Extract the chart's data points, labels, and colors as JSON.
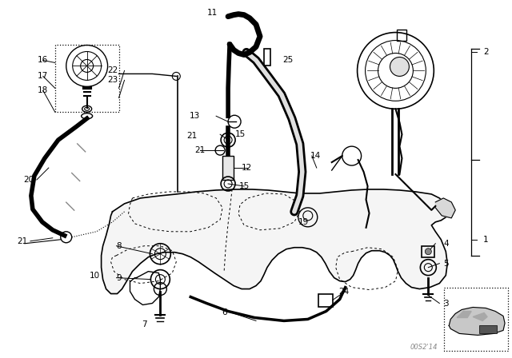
{
  "bg_color": "#ffffff",
  "line_color": "#000000",
  "fig_width": 6.4,
  "fig_height": 4.48,
  "dpi": 100,
  "watermark": "00S2'14"
}
